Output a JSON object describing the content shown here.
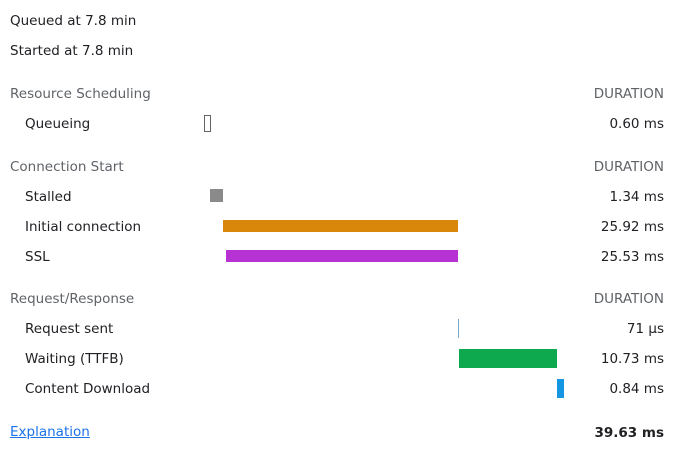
{
  "meta": {
    "queued": "Queued at 7.8 min",
    "started": "Started at 7.8 min"
  },
  "sections": {
    "scheduling": {
      "title": "Resource Scheduling",
      "duration_header": "DURATION"
    },
    "connection": {
      "title": "Connection Start",
      "duration_header": "DURATION"
    },
    "request": {
      "title": "Request/Response",
      "duration_header": "DURATION"
    }
  },
  "rows": {
    "queueing": {
      "label": "Queueing",
      "value": "0.60 ms"
    },
    "stalled": {
      "label": "Stalled",
      "value": "1.34 ms"
    },
    "initial_connection": {
      "label": "Initial connection",
      "value": "25.92 ms"
    },
    "ssl": {
      "label": "SSL",
      "value": "25.53 ms"
    },
    "request_sent": {
      "label": "Request sent",
      "value": "71 µs"
    },
    "waiting": {
      "label": "Waiting (TTFB)",
      "value": "10.73 ms"
    },
    "content_download": {
      "label": "Content Download",
      "value": "0.84 ms"
    }
  },
  "colors": {
    "queueing": "#ffffff",
    "stalled": "#8a8a8a",
    "initial_connection": "#d9870a",
    "ssl": "#b632d3",
    "request_sent": "#7aa7c7",
    "waiting": "#0ea84f",
    "content_download": "#1596e2"
  },
  "footer": {
    "explanation_link": "Explanation",
    "total": "39.63 ms"
  }
}
